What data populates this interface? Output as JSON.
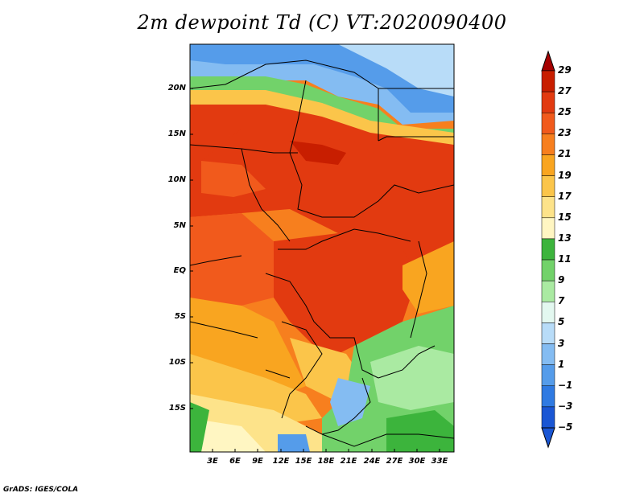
{
  "title": "2m dewpoint Td (C) VT:2020090400",
  "credit": "GrADS: IGES/COLA",
  "map": {
    "lat_labels": [
      "20N",
      "15N",
      "10N",
      "5N",
      "EQ",
      "5S",
      "10S",
      "15S"
    ],
    "lon_labels": [
      "3E",
      "6E",
      "9E",
      "12E",
      "15E",
      "18E",
      "21E",
      "24E",
      "27E",
      "30E",
      "33E"
    ]
  },
  "colorbar": {
    "labels": [
      "29",
      "27",
      "25",
      "23",
      "21",
      "19",
      "17",
      "15",
      "13",
      "11",
      "9",
      "7",
      "5",
      "3",
      "1",
      "−1",
      "−3",
      "−5"
    ],
    "colors": [
      "#a50000",
      "#c81e00",
      "#e23a10",
      "#f15a1c",
      "#f77f1e",
      "#f9a520",
      "#fbc54a",
      "#fde38a",
      "#fff6c2",
      "#3cb43c",
      "#72d26a",
      "#aaeaa2",
      "#e3f8f0",
      "#b8dcf8",
      "#84bcf2",
      "#559cea",
      "#2f7ae2",
      "#1a56d4"
    ]
  }
}
